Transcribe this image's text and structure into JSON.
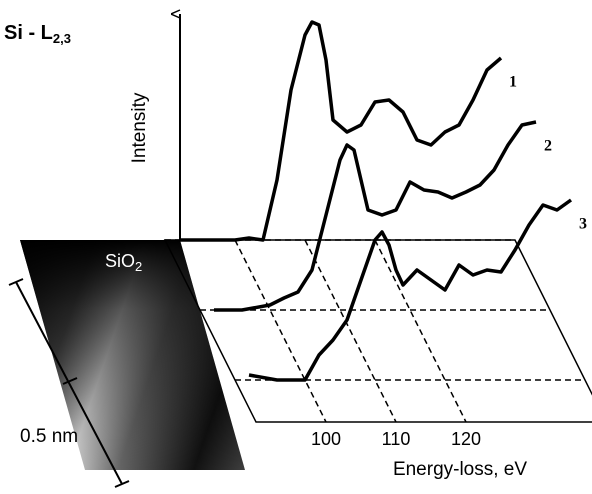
{
  "chart_data": {
    "type": "waterfall",
    "title": "Si - L",
    "title_subscript": "2,3",
    "y_label": "Intensity",
    "x_label": "Energy-loss, eV",
    "image_label": "SiO",
    "image_label_subscript": "2",
    "scale_bar_label": "0.5 nm",
    "xlim": [
      90,
      140
    ],
    "xticks": [
      100,
      110,
      120
    ],
    "x": [
      92,
      96,
      100,
      102,
      104,
      106,
      108,
      110,
      111,
      112,
      113,
      114,
      116,
      118,
      120,
      122,
      124,
      126,
      128,
      130,
      132,
      134,
      136,
      138
    ],
    "series": [
      {
        "name": "1",
        "color": "#000000",
        "values": [
          0,
          0,
          0,
          2,
          0,
          60,
          150,
          205,
          218,
          215,
          180,
          120,
          108,
          115,
          138,
          140,
          128,
          100,
          95,
          108,
          115,
          140,
          170,
          182
        ]
      },
      {
        "name": "2",
        "color": "#000000",
        "values": [
          0,
          0,
          5,
          12,
          18,
          40,
          95,
          150,
          165,
          160,
          130,
          100,
          95,
          100,
          128,
          120,
          118,
          112,
          118,
          125,
          140,
          165,
          185,
          188
        ]
      },
      {
        "name": "3",
        "color": "#000000",
        "values": [
          5,
          0,
          0,
          25,
          40,
          60,
          100,
          140,
          148,
          135,
          110,
          95,
          110,
          100,
          90,
          115,
          105,
          110,
          108,
          130,
          155,
          175,
          170,
          180
        ]
      }
    ]
  }
}
